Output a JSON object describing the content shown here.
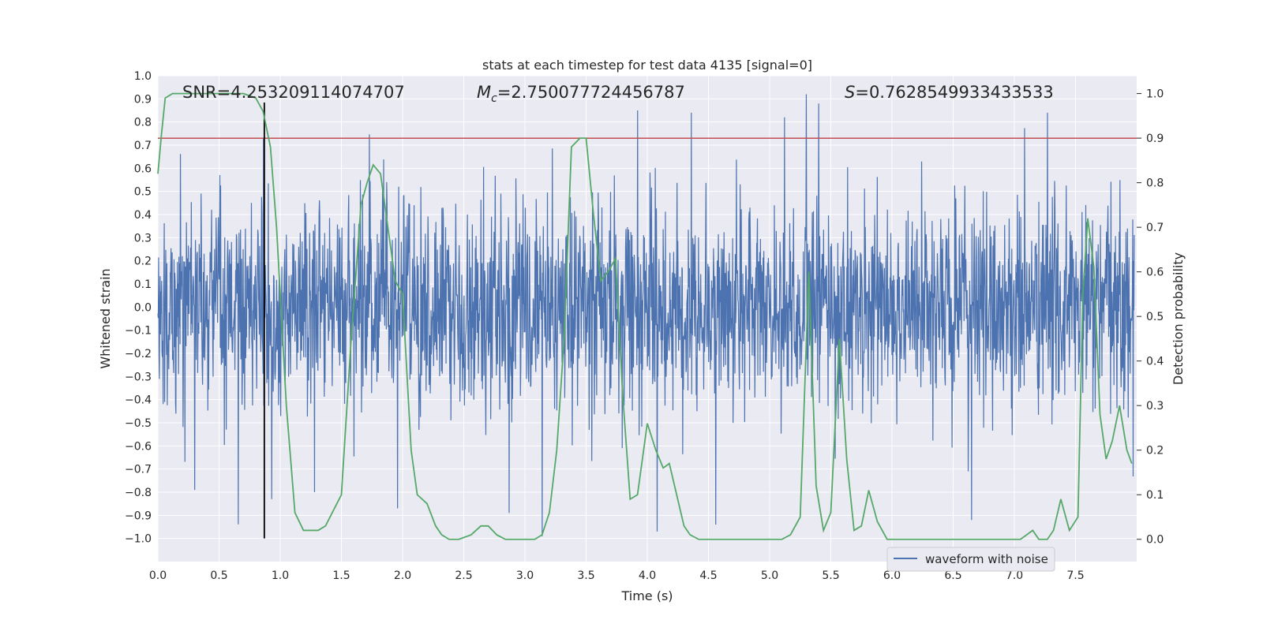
{
  "chart_data": {
    "type": "line",
    "title": "stats at each timestep for test data 4135 [signal=0]",
    "xlabel": "Time (s)",
    "ylabel": "Whitened strain",
    "y2label": "Detection probability",
    "xlim": [
      0.0,
      8.0
    ],
    "ylim": [
      -1.1,
      1.0
    ],
    "y2lim": [
      -0.05,
      1.04
    ],
    "x_ticks": [
      "0.0",
      "0.5",
      "1.0",
      "1.5",
      "2.0",
      "2.5",
      "3.0",
      "3.5",
      "4.0",
      "4.5",
      "5.0",
      "5.5",
      "6.0",
      "6.5",
      "7.0",
      "7.5"
    ],
    "y_ticks": [
      "1.0",
      "0.9",
      "0.8",
      "0.7",
      "0.6",
      "0.5",
      "0.4",
      "0.3",
      "0.2",
      "0.1",
      "0.0",
      "-0.1",
      "-0.2",
      "-0.3",
      "-0.4",
      "-0.5",
      "-0.6",
      "-0.7",
      "-0.8",
      "-0.9",
      "-1.0"
    ],
    "y2_ticks": [
      "1.0",
      "0.9",
      "0.8",
      "0.7",
      "0.6",
      "0.5",
      "0.4",
      "0.3",
      "0.2",
      "0.1",
      "0.0"
    ],
    "annotations": {
      "snr": "SNR=4.253209114074707",
      "mc_symbol": "M",
      "mc_subscript": "c",
      "mc_value": "=2.750077724456787",
      "s_symbol": "S",
      "s_value": "=0.7628549933433533"
    },
    "legend": {
      "label": "waveform with noise",
      "position": "lower-right"
    },
    "threshold_y": 0.73,
    "marker_time": 0.87,
    "waveform": {
      "name": "waveform with noise",
      "color": "#4c72b0",
      "description_range": [
        -1.0,
        0.92
      ],
      "spikes": [
        {
          "t": 0.3,
          "v": -0.79
        },
        {
          "t": 0.93,
          "v": -0.83
        },
        {
          "t": 1.28,
          "v": -0.8
        },
        {
          "t": 1.96,
          "v": -0.87
        },
        {
          "t": 2.87,
          "v": -0.89
        },
        {
          "t": 3.14,
          "v": -0.99
        },
        {
          "t": 3.92,
          "v": 0.85
        },
        {
          "t": 4.08,
          "v": -0.97
        },
        {
          "t": 4.36,
          "v": 0.84
        },
        {
          "t": 4.56,
          "v": -0.94
        },
        {
          "t": 5.12,
          "v": 0.82
        },
        {
          "t": 5.3,
          "v": 0.92
        },
        {
          "t": 5.4,
          "v": 0.88
        },
        {
          "t": 6.65,
          "v": -0.92
        },
        {
          "t": 7.27,
          "v": 0.84
        }
      ]
    },
    "probability": {
      "name": "detection probability",
      "color": "#55a868",
      "x": [
        0.0,
        0.03,
        0.06,
        0.12,
        0.2,
        0.3,
        0.5,
        0.7,
        0.8,
        0.86,
        0.92,
        0.97,
        1.05,
        1.12,
        1.19,
        1.25,
        1.31,
        1.37,
        1.5,
        1.58,
        1.66,
        1.71,
        1.76,
        1.82,
        1.88,
        1.94,
        2.0,
        2.07,
        2.12,
        2.2,
        2.27,
        2.32,
        2.38,
        2.46,
        2.56,
        2.64,
        2.7,
        2.77,
        2.84,
        2.92,
        3.0,
        3.08,
        3.14,
        3.2,
        3.26,
        3.32,
        3.38,
        3.45,
        3.5,
        3.56,
        3.62,
        3.68,
        3.74,
        3.8,
        3.86,
        3.92,
        4.0,
        4.07,
        4.13,
        4.18,
        4.24,
        4.3,
        4.35,
        4.42,
        4.5,
        4.65,
        4.8,
        4.9,
        5.0,
        5.1,
        5.17,
        5.25,
        5.32,
        5.38,
        5.44,
        5.5,
        5.57,
        5.63,
        5.69,
        5.75,
        5.81,
        5.88,
        5.96,
        6.05,
        6.2,
        6.4,
        6.6,
        6.8,
        6.9,
        7.05,
        7.1,
        7.15,
        7.2,
        7.27,
        7.32,
        7.38,
        7.45,
        7.52,
        7.56,
        7.6,
        7.65,
        7.7,
        7.75,
        7.8,
        7.86,
        7.92,
        7.96
      ],
      "y": [
        0.82,
        0.91,
        0.99,
        1.0,
        1.0,
        1.0,
        1.0,
        1.0,
        0.99,
        0.96,
        0.88,
        0.7,
        0.3,
        0.06,
        0.02,
        0.02,
        0.02,
        0.03,
        0.1,
        0.45,
        0.75,
        0.8,
        0.84,
        0.82,
        0.7,
        0.58,
        0.55,
        0.2,
        0.1,
        0.08,
        0.03,
        0.01,
        0.0,
        0.0,
        0.01,
        0.03,
        0.03,
        0.01,
        0.0,
        0.0,
        0.0,
        0.0,
        0.01,
        0.06,
        0.2,
        0.45,
        0.88,
        0.9,
        0.9,
        0.73,
        0.58,
        0.6,
        0.63,
        0.32,
        0.09,
        0.1,
        0.26,
        0.2,
        0.16,
        0.17,
        0.1,
        0.03,
        0.01,
        0.0,
        0.0,
        0.0,
        0.0,
        0.0,
        0.0,
        0.0,
        0.01,
        0.05,
        0.6,
        0.12,
        0.02,
        0.06,
        0.45,
        0.18,
        0.02,
        0.03,
        0.11,
        0.04,
        0.0,
        0.0,
        0.0,
        0.0,
        0.0,
        0.0,
        0.0,
        0.0,
        0.01,
        0.02,
        0.0,
        0.0,
        0.02,
        0.09,
        0.02,
        0.05,
        0.55,
        0.72,
        0.61,
        0.28,
        0.18,
        0.22,
        0.3,
        0.2,
        0.17
      ]
    }
  }
}
